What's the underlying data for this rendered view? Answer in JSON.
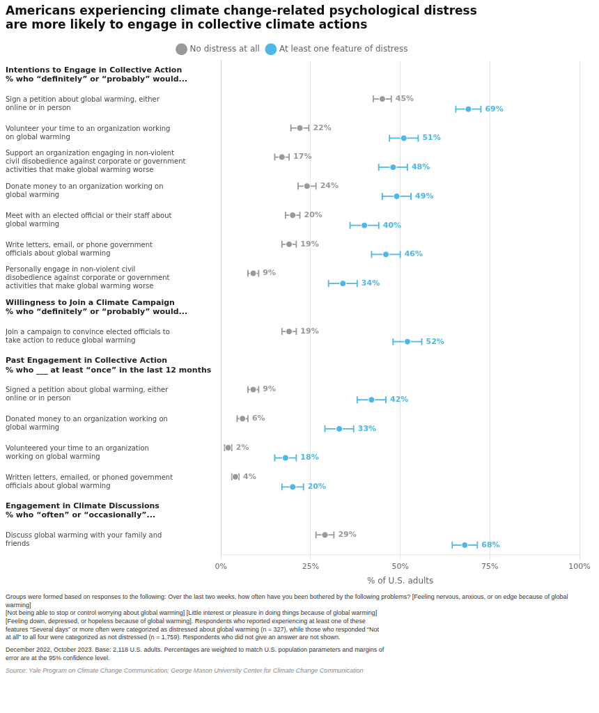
{
  "chart_data": {
    "type": "dot",
    "orientation": "horizontal",
    "title": "Americans experiencing climate change-related psychological distress\nare more likely to engage in collective climate actions",
    "xlabel": "% of U.S. adults",
    "xlim": [
      0,
      100
    ],
    "xticks": [
      {
        "value": 0,
        "label": "0%"
      },
      {
        "value": 25,
        "label": "25%"
      },
      {
        "value": 50,
        "label": "50%"
      },
      {
        "value": 75,
        "label": "75%"
      },
      {
        "value": 100,
        "label": "100%"
      }
    ],
    "grid": true,
    "legend": "top",
    "data_labels": true,
    "groups": [
      {
        "header": "Intentions to Engage in Collective Action",
        "subheader": "% who “definitely” or “probably” would...",
        "categories": [
          "Sign a petition about global warming, either\nonline or in person",
          "Volunteer your time to an organization working\non global warming",
          "Support an organization engaging in non-violent\ncivil disobedience against corporate or government\nactivities that make global warming worse",
          "Donate money to an organization working on\nglobal warming",
          "Meet with an elected official or their staff about\nglobal warming",
          "Write letters, email, or phone government\nofficials about global warming",
          "Personally engage in non-violent civil\ndisobedience against corporate or government\nactivities that make global warming worse"
        ]
      },
      {
        "header": "Willingness to Join a Climate Campaign",
        "subheader": "% who “definitely” or “probably” would...",
        "categories": [
          "Join a campaign to convince elected officials to\ntake action to reduce global warming"
        ]
      },
      {
        "header": "Past Engagement in Collective Action",
        "subheader": "% who ___ at least “once” in the last 12 months",
        "categories": [
          "Signed a petition about global warming, either\nonline or in person",
          "Donated money to an organization working on\nglobal warming",
          "Volunteered your time to an organization\nworking on global warming",
          "Written letters, emailed, or phoned government\nofficials about global warming"
        ]
      },
      {
        "header": "Engagement in Climate Discussions",
        "subheader": "% who “often” or “occasionally”...",
        "categories": [
          "Discuss global warming with your family and\nfriends"
        ]
      }
    ],
    "series": [
      {
        "name": "No distress at all",
        "color": "#999999",
        "values": [
          45,
          22,
          17,
          24,
          20,
          19,
          9,
          19,
          9,
          6,
          2,
          4,
          29
        ],
        "errors": [
          2.5,
          2.5,
          2.0,
          2.5,
          2.0,
          2.0,
          1.5,
          2.0,
          1.5,
          1.5,
          1.0,
          1.0,
          2.5
        ],
        "value_labels": [
          "45%",
          "22%",
          "17%",
          "24%",
          "20%",
          "19%",
          "9%",
          "19%",
          "9%",
          "6%",
          "2%",
          "4%",
          "29%"
        ]
      },
      {
        "name": "At least one feature of distress",
        "color": "#4bb8e8",
        "values": [
          69,
          51,
          48,
          49,
          40,
          46,
          34,
          52,
          42,
          33,
          18,
          20,
          68
        ],
        "errors": [
          3.5,
          4.0,
          4.0,
          4.0,
          4.0,
          4.0,
          4.0,
          4.0,
          4.0,
          4.0,
          3.0,
          3.0,
          3.5
        ],
        "value_labels": [
          "69%",
          "51%",
          "48%",
          "49%",
          "40%",
          "46%",
          "34%",
          "52%",
          "42%",
          "33%",
          "18%",
          "20%",
          "68%"
        ]
      }
    ],
    "footnotes": [
      "Groups were formed based on responses to the following: Over the last two weeks, how often have you been bothered by the following problems? [Feeling nervous, anxious, or on edge because of global warming]\n[Not being able to stop or control worrying about global warming] [Little interest or pleasure in doing things because of global warming]\n[Feeling down, depressed, or hopeless because of global warming]. Respondents who reported experiencing at least one of these\nfeatures “Several days” or more often were categorized as distressed about global warming (n = 327), while those who responded “Not\nat all” to all four were categorized as not distressed (n = 1,759). Respondents who did not give an answer are not shown.",
      "December 2022, October 2023. Base: 2,118 U.S. adults. Percentages are weighted to match U.S. population parameters and margins of\nerror are at the 95% confidence level.",
      "Source: Yale Program on Climate Change Communication; George Mason University Center for Climate Change Communication"
    ]
  }
}
